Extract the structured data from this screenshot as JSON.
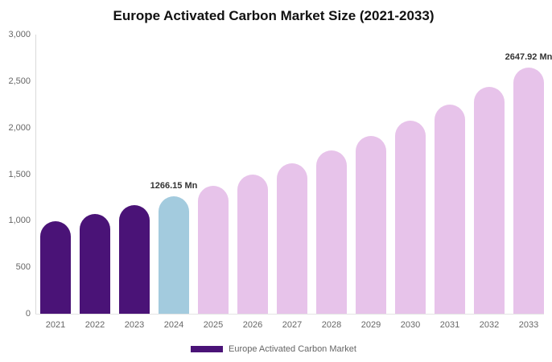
{
  "title": "Europe Activated Carbon Market Size (2021-2033)",
  "colors": {
    "historical_bar": "#4A1377",
    "highlight_bar": "#A3CBDE",
    "forecast_bar": "#E7C3EA",
    "axis_line": "#D9D9D9",
    "tick_label": "#666666",
    "value_label": "#333333",
    "title_text": "#111111"
  },
  "chart_data": {
    "type": "bar",
    "title": "Europe Activated Carbon Market Size (2021-2033)",
    "categories": [
      "2021",
      "2022",
      "2023",
      "2024",
      "2025",
      "2026",
      "2027",
      "2028",
      "2029",
      "2030",
      "2031",
      "2032",
      "2033"
    ],
    "values": [
      990,
      1075,
      1166,
      1266.15,
      1374,
      1492,
      1619,
      1758,
      1908,
      2071,
      2248,
      2440,
      2647.92
    ],
    "unit": "Mn",
    "bar_colors": [
      "#4A1377",
      "#4A1377",
      "#4A1377",
      "#A3CBDE",
      "#E7C3EA",
      "#E7C3EA",
      "#E7C3EA",
      "#E7C3EA",
      "#E7C3EA",
      "#E7C3EA",
      "#E7C3EA",
      "#E7C3EA",
      "#E7C3EA"
    ],
    "point_labels": [
      "",
      "",
      "",
      "1266.15 Mn",
      "",
      "",
      "",
      "",
      "",
      "",
      "",
      "",
      "2647.92 Mn"
    ],
    "xlabel": "",
    "ylabel": "",
    "ylim": [
      0,
      3000
    ],
    "yticks": [
      0,
      500,
      1000,
      1500,
      2000,
      2500,
      3000
    ],
    "ytick_labels": [
      "0",
      "500",
      "1,000",
      "1,500",
      "2,000",
      "2,500",
      "3,000"
    ],
    "grid": false,
    "legend_position": "bottom",
    "legend_entries": [
      "Europe Activated Carbon Market"
    ]
  },
  "legend": {
    "label": "Europe Activated Carbon Market",
    "swatch_color": "#4A1377"
  }
}
